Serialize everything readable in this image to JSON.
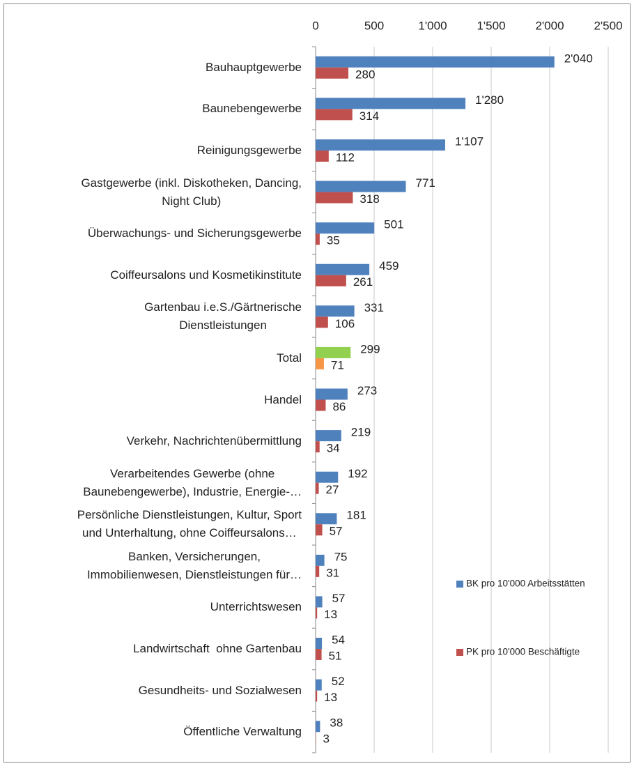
{
  "chart_data": {
    "type": "hbar",
    "categories": [
      "Bauhauptgewerbe",
      "Baunebengewerbe",
      "Reinigungsgewerbe",
      "Gastgewerbe (inkl. Diskotheken, Dancing,\nNight Club)",
      "Überwachungs- und Sicherungsgewerbe",
      "Coiffeursalons und Kosmetikinstitute",
      "Gartenbau i.e.S./Gärtnerische\nDienstleistungen",
      "Total",
      "Handel",
      "Verkehr, Nachrichtenübermittlung",
      "Verarbeitendes Gewerbe (ohne\nBaunebengewerbe), Industrie, Energie-…",
      "Persönliche Dienstleistungen, Kultur, Sport\nund Unterhaltung, ohne Coiffeursalons…",
      "Banken, Versicherungen,\nImmobilienwesen, Dienstleistungen für…",
      "Unterrichtswesen",
      "Landwirtschaft  ohne Gartenbau",
      "Gesundheits- und Sozialwesen",
      "Öffentliche Verwaltung"
    ],
    "series": [
      {
        "name": "BK pro 10'000 Arbeitsstätten",
        "color": "#4f81bd",
        "color_overrides": {
          "7": "#92d050"
        },
        "values": [
          2040,
          1280,
          1107,
          771,
          501,
          459,
          331,
          299,
          273,
          219,
          192,
          181,
          75,
          57,
          54,
          52,
          38
        ],
        "value_labels": [
          "2'040",
          "1'280",
          "1'107",
          "771",
          "501",
          "459",
          "331",
          "299",
          "273",
          "219",
          "192",
          "181",
          "75",
          "57",
          "54",
          "52",
          "38"
        ]
      },
      {
        "name": "PK pro 10'000 Beschäftigte",
        "color": "#c0504d",
        "color_overrides": {
          "7": "#f79646"
        },
        "values": [
          280,
          314,
          112,
          318,
          35,
          261,
          106,
          71,
          86,
          34,
          27,
          57,
          31,
          13,
          51,
          13,
          3
        ]
      }
    ],
    "xlim": [
      0,
      2500
    ],
    "xticks": [
      0,
      500,
      {
        "value": 1000,
        "label": "1'000"
      },
      {
        "value": 1500,
        "label": "1'500"
      },
      {
        "value": 2000,
        "label": "2'000"
      },
      {
        "value": 2500,
        "label": "2'500"
      }
    ],
    "grid": true,
    "legend": "right"
  }
}
